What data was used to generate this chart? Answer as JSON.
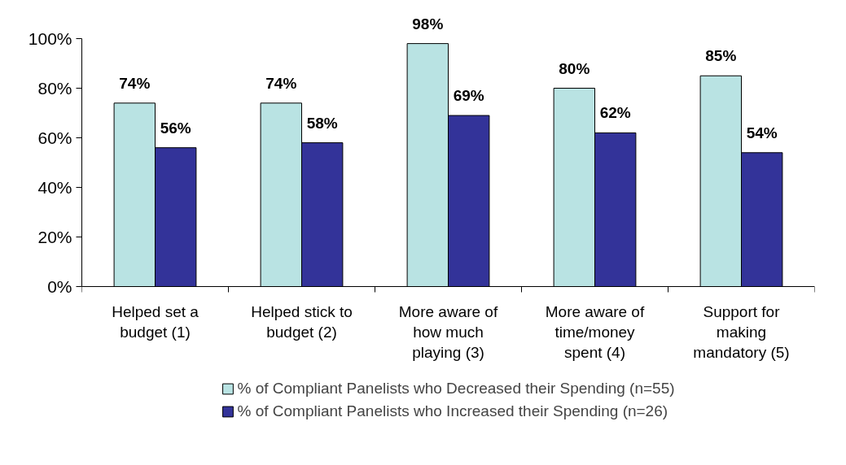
{
  "chart_data": {
    "type": "bar",
    "categories": [
      "Helped set a\nbudget (1)",
      "Helped stick to\nbudget (2)",
      "More aware of\nhow much\nplaying (3)",
      "More aware of\ntime/money\nspent (4)",
      "Support for\nmaking\nmandatory (5)"
    ],
    "series": [
      {
        "name": "% of Compliant Panelists who Decreased their Spending (n=55)",
        "color": "#b9e3e3",
        "values": [
          74,
          74,
          98,
          80,
          85
        ],
        "value_labels": [
          "74%",
          "74%",
          "98%",
          "80%",
          "85%"
        ]
      },
      {
        "name": "% of Compliant Panelists who Increased their Spending (n=26)",
        "color": "#333399",
        "values": [
          56,
          58,
          69,
          62,
          54
        ],
        "value_labels": [
          "56%",
          "58%",
          "69%",
          "62%",
          "54%"
        ]
      }
    ],
    "ylim": [
      0,
      100
    ],
    "yticks": [
      {
        "value": 0,
        "label": "0%"
      },
      {
        "value": 20,
        "label": "20%"
      },
      {
        "value": 40,
        "label": "40%"
      },
      {
        "value": 60,
        "label": "60%"
      },
      {
        "value": 80,
        "label": "80%"
      },
      {
        "value": 100,
        "label": "100%"
      }
    ],
    "grid": false,
    "legend": "bottom"
  }
}
